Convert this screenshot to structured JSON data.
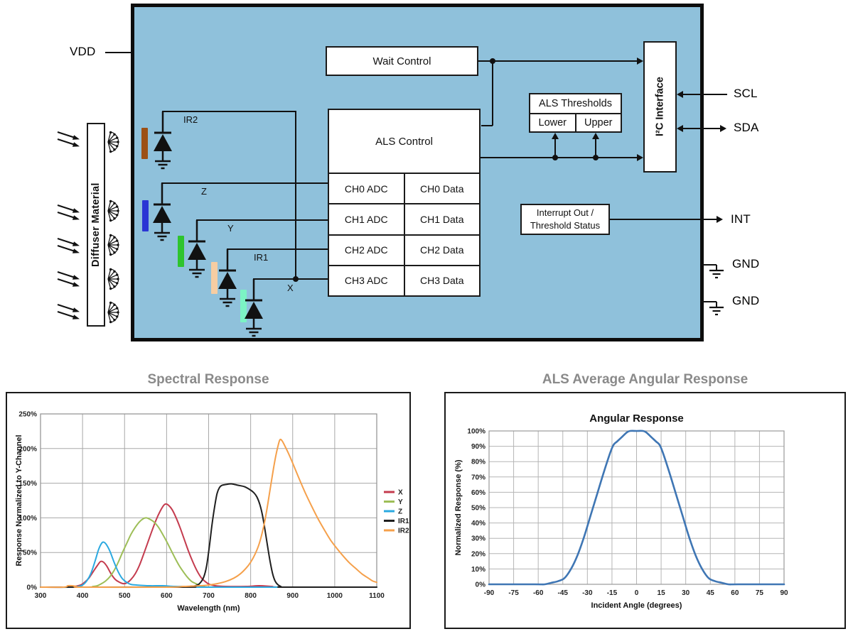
{
  "block_diagram": {
    "chip_fill": "#8FC1DB",
    "pins": {
      "vdd": "VDD",
      "scl": "SCL",
      "sda": "SDA",
      "int": "INT",
      "gnd1": "GND",
      "gnd2": "GND"
    },
    "diffuser_label": "Diffuser Material",
    "boxes": {
      "wait_control": "Wait Control",
      "als_control": "ALS Control",
      "als_thresholds": "ALS Thresholds",
      "threshold_lower": "Lower",
      "threshold_upper": "Upper",
      "i2c_interface": "I²C Interface",
      "interrupt_line1": "Interrupt Out /",
      "interrupt_line2": "Threshold Status"
    },
    "adc_rows": [
      {
        "adc": "CH0 ADC",
        "data": "CH0 Data"
      },
      {
        "adc": "CH1 ADC",
        "data": "CH1 Data"
      },
      {
        "adc": "CH2 ADC",
        "data": "CH2 Data"
      },
      {
        "adc": "CH3 ADC",
        "data": "CH3 Data"
      }
    ],
    "photodiodes": [
      {
        "label": "IR2",
        "filter_color": "#9C5016"
      },
      {
        "label": "Z",
        "filter_color": "#2A35D4"
      },
      {
        "label": "Y",
        "filter_color": "#2EC42E"
      },
      {
        "label": "IR1",
        "filter_color": "#F6CDA2"
      },
      {
        "label": "X",
        "filter_color": "#7CF3C4"
      }
    ]
  },
  "chart_data": [
    {
      "type": "line",
      "title": "Spectral Response",
      "inner_title": "",
      "xlabel": "Wavelength (nm)",
      "ylabel": "Response Normalized to Y-Channel",
      "xlim": [
        300,
        1100
      ],
      "ylim": [
        0,
        250
      ],
      "xticks": [
        300,
        400,
        500,
        600,
        700,
        800,
        900,
        1000,
        1100
      ],
      "yticks": [
        0,
        50,
        100,
        150,
        200,
        250
      ],
      "ytick_suffix": "%",
      "grid": true,
      "legend_position": "right",
      "series": [
        {
          "name": "X",
          "color": "#C43B4E",
          "points": [
            [
              300,
              0
            ],
            [
              360,
              0
            ],
            [
              380,
              1
            ],
            [
              395,
              3
            ],
            [
              405,
              7
            ],
            [
              415,
              13
            ],
            [
              425,
              22
            ],
            [
              435,
              31
            ],
            [
              443,
              37
            ],
            [
              450,
              36
            ],
            [
              458,
              30
            ],
            [
              468,
              19
            ],
            [
              478,
              11
            ],
            [
              488,
              7
            ],
            [
              497,
              5
            ],
            [
              505,
              6
            ],
            [
              515,
              11
            ],
            [
              525,
              19
            ],
            [
              535,
              31
            ],
            [
              545,
              47
            ],
            [
              555,
              64
            ],
            [
              565,
              81
            ],
            [
              575,
              97
            ],
            [
              585,
              110
            ],
            [
              593,
              118
            ],
            [
              598,
              120
            ],
            [
              605,
              118
            ],
            [
              613,
              112
            ],
            [
              622,
              101
            ],
            [
              632,
              86
            ],
            [
              642,
              69
            ],
            [
              652,
              52
            ],
            [
              662,
              37
            ],
            [
              672,
              24
            ],
            [
              682,
              14
            ],
            [
              692,
              8
            ],
            [
              702,
              4
            ],
            [
              715,
              2
            ],
            [
              740,
              1
            ],
            [
              790,
              1
            ],
            [
              820,
              2
            ],
            [
              850,
              1
            ],
            [
              880,
              0
            ],
            [
              1100,
              0
            ]
          ]
        },
        {
          "name": "Y",
          "color": "#9DBE57",
          "points": [
            [
              300,
              0
            ],
            [
              410,
              0
            ],
            [
              425,
              1
            ],
            [
              435,
              2
            ],
            [
              445,
              5
            ],
            [
              455,
              9
            ],
            [
              465,
              15
            ],
            [
              475,
              24
            ],
            [
              485,
              36
            ],
            [
              495,
              50
            ],
            [
              505,
              63
            ],
            [
              515,
              76
            ],
            [
              525,
              86
            ],
            [
              535,
              94
            ],
            [
              545,
              99
            ],
            [
              552,
              100
            ],
            [
              560,
              98
            ],
            [
              570,
              94
            ],
            [
              580,
              87
            ],
            [
              590,
              77
            ],
            [
              600,
              66
            ],
            [
              610,
              54
            ],
            [
              620,
              42
            ],
            [
              630,
              31
            ],
            [
              640,
              22
            ],
            [
              650,
              14
            ],
            [
              660,
              8
            ],
            [
              670,
              5
            ],
            [
              680,
              2
            ],
            [
              690,
              1
            ],
            [
              705,
              0
            ],
            [
              1100,
              0
            ]
          ]
        },
        {
          "name": "Z",
          "color": "#2BA9E0",
          "points": [
            [
              300,
              0
            ],
            [
              375,
              0
            ],
            [
              390,
              1
            ],
            [
              400,
              3
            ],
            [
              410,
              9
            ],
            [
              420,
              20
            ],
            [
              430,
              38
            ],
            [
              438,
              54
            ],
            [
              445,
              63
            ],
            [
              450,
              65
            ],
            [
              456,
              62
            ],
            [
              465,
              52
            ],
            [
              475,
              36
            ],
            [
              485,
              22
            ],
            [
              495,
              12
            ],
            [
              505,
              7
            ],
            [
              515,
              4
            ],
            [
              530,
              3
            ],
            [
              560,
              2
            ],
            [
              590,
              2
            ],
            [
              620,
              1
            ],
            [
              660,
              1
            ],
            [
              700,
              0
            ],
            [
              1100,
              0
            ]
          ]
        },
        {
          "name": "IR1",
          "color": "#1F1F1F",
          "points": [
            [
              300,
              0
            ],
            [
              640,
              0
            ],
            [
              655,
              1
            ],
            [
              668,
              2
            ],
            [
              678,
              5
            ],
            [
              688,
              14
            ],
            [
              695,
              30
            ],
            [
              702,
              60
            ],
            [
              708,
              90
            ],
            [
              714,
              115
            ],
            [
              720,
              135
            ],
            [
              726,
              144
            ],
            [
              732,
              147
            ],
            [
              740,
              148
            ],
            [
              755,
              149
            ],
            [
              770,
              147
            ],
            [
              785,
              145
            ],
            [
              800,
              140
            ],
            [
              808,
              136
            ],
            [
              815,
              130
            ],
            [
              822,
              119
            ],
            [
              828,
              104
            ],
            [
              834,
              83
            ],
            [
              840,
              60
            ],
            [
              846,
              38
            ],
            [
              852,
              20
            ],
            [
              858,
              9
            ],
            [
              864,
              4
            ],
            [
              872,
              1
            ],
            [
              885,
              0
            ],
            [
              1100,
              0
            ]
          ]
        },
        {
          "name": "IR2",
          "color": "#F5A04B",
          "points": [
            [
              300,
              0
            ],
            [
              355,
              0
            ],
            [
              365,
              2
            ],
            [
              375,
              2
            ],
            [
              385,
              1
            ],
            [
              400,
              0
            ],
            [
              600,
              0
            ],
            [
              640,
              1
            ],
            [
              680,
              2
            ],
            [
              700,
              3
            ],
            [
              720,
              5
            ],
            [
              740,
              8
            ],
            [
              760,
              13
            ],
            [
              775,
              19
            ],
            [
              790,
              28
            ],
            [
              800,
              36
            ],
            [
              810,
              47
            ],
            [
              820,
              62
            ],
            [
              830,
              85
            ],
            [
              838,
              110
            ],
            [
              846,
              140
            ],
            [
              854,
              170
            ],
            [
              860,
              190
            ],
            [
              866,
              206
            ],
            [
              870,
              213
            ],
            [
              875,
              211
            ],
            [
              882,
              203
            ],
            [
              890,
              193
            ],
            [
              900,
              179
            ],
            [
              915,
              157
            ],
            [
              930,
              136
            ],
            [
              945,
              117
            ],
            [
              960,
              99
            ],
            [
              975,
              83
            ],
            [
              990,
              68
            ],
            [
              1005,
              56
            ],
            [
              1020,
              45
            ],
            [
              1035,
              35
            ],
            [
              1050,
              27
            ],
            [
              1065,
              19
            ],
            [
              1080,
              13
            ],
            [
              1090,
              9
            ],
            [
              1100,
              7
            ]
          ]
        }
      ]
    },
    {
      "type": "line",
      "title": "ALS Average Angular Response",
      "inner_title": "Angular Response",
      "xlabel": "Incident Angle (degrees)",
      "ylabel": "Normalized Response (%)",
      "xlim": [
        -90,
        90
      ],
      "ylim": [
        0,
        100
      ],
      "xticks": [
        -90,
        -75,
        -60,
        -45,
        -30,
        -15,
        0,
        15,
        30,
        45,
        60,
        75,
        90
      ],
      "yticks": [
        0,
        10,
        20,
        30,
        40,
        50,
        60,
        70,
        80,
        90,
        100
      ],
      "ytick_suffix": "%",
      "grid": true,
      "legend_position": "none",
      "series": [
        {
          "name": "ALS",
          "color": "#3F76B4",
          "points": [
            [
              -90,
              0
            ],
            [
              -62,
              0
            ],
            [
              -56,
              0
            ],
            [
              -52,
              1
            ],
            [
              -48,
              2
            ],
            [
              -44,
              4
            ],
            [
              -40,
              10
            ],
            [
              -36,
              19
            ],
            [
              -32,
              31
            ],
            [
              -28,
              45
            ],
            [
              -24,
              59
            ],
            [
              -20,
              73
            ],
            [
              -16,
              86
            ],
            [
              -14,
              91
            ],
            [
              -12,
              93
            ],
            [
              -10,
              95
            ],
            [
              -8,
              97
            ],
            [
              -6,
              99
            ],
            [
              -4,
              100
            ],
            [
              0,
              100
            ],
            [
              4,
              100
            ],
            [
              6,
              99
            ],
            [
              8,
              97
            ],
            [
              10,
              95
            ],
            [
              12,
              93
            ],
            [
              14,
              91
            ],
            [
              16,
              86
            ],
            [
              20,
              73
            ],
            [
              24,
              59
            ],
            [
              28,
              45
            ],
            [
              32,
              31
            ],
            [
              36,
              19
            ],
            [
              40,
              10
            ],
            [
              44,
              4
            ],
            [
              48,
              2
            ],
            [
              52,
              1
            ],
            [
              56,
              0
            ],
            [
              62,
              0
            ],
            [
              90,
              0
            ]
          ]
        }
      ]
    }
  ]
}
